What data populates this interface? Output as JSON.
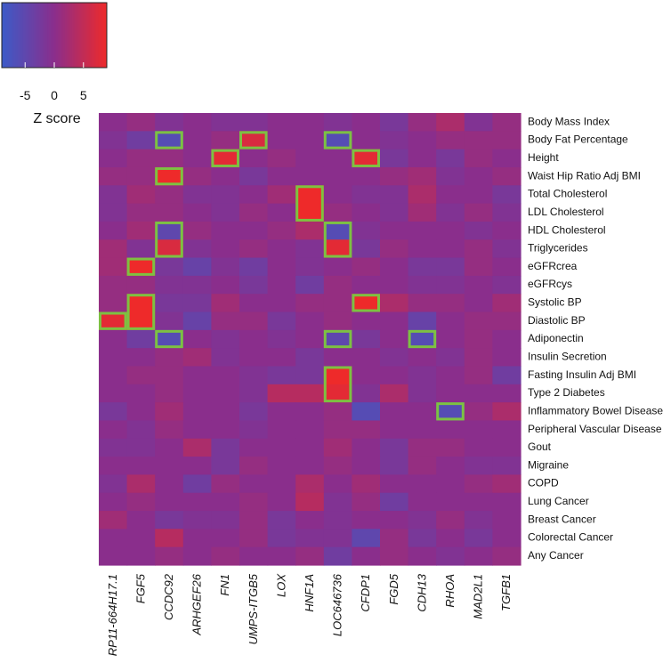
{
  "chart_data": {
    "type": "heatmap",
    "title": "",
    "rows": [
      "Body Mass Index",
      "Body Fat Percentage",
      "Height",
      "Waist Hip Ratio Adj BMI",
      "Total Cholesterol",
      "LDL Cholesterol",
      "HDL Cholesterol",
      "Triglycerides",
      "eGFRcrea",
      "eGFRcys",
      "Systolic BP",
      "Diastolic BP",
      "Adiponectin",
      "Insulin Secretion",
      "Fasting Insulin Adj BMI",
      "Type 2 Diabetes",
      "Inflammatory Bowel Disease",
      "Peripheral Vascular Disease",
      "Gout",
      "Migraine",
      "COPD",
      "Lung Cancer",
      "Breast Cancer",
      "Colorectal Cancer",
      "Any Cancer"
    ],
    "columns": [
      "RP11-664H17.1",
      "FGF5",
      "CCDC92",
      "ARHGEF26",
      "FN1",
      "UMPS-ITGB5",
      "LOX",
      "HNF1A",
      "LOC646736",
      "CFDP1",
      "FGD5",
      "CDH13",
      "RHOA",
      "MAD2L1",
      "TGFB1"
    ],
    "values": [
      [
        0,
        1,
        -1,
        0,
        -1,
        -1,
        0,
        0,
        -1,
        0,
        -2,
        1,
        3,
        -1,
        1
      ],
      [
        -1,
        -3,
        -6,
        0,
        1,
        7,
        0,
        0,
        -6,
        0,
        -1,
        0,
        1,
        1,
        1
      ],
      [
        0,
        1,
        1,
        0,
        8,
        0,
        1,
        0,
        0,
        8,
        -2,
        0,
        -2,
        1,
        0
      ],
      [
        1,
        1,
        9,
        1,
        0,
        -2,
        0,
        0,
        0,
        0,
        1,
        2,
        -1,
        0,
        1
      ],
      [
        -1,
        2,
        1,
        -1,
        -1,
        0,
        2,
        9,
        0,
        -1,
        -1,
        3,
        0,
        0,
        -2
      ],
      [
        -1,
        1,
        1,
        0,
        -1,
        1,
        0,
        9,
        1,
        0,
        -1,
        2,
        -1,
        1,
        -1
      ],
      [
        0,
        2,
        -5,
        1,
        0,
        0,
        1,
        3,
        -6,
        -1,
        0,
        0,
        0,
        -1,
        0
      ],
      [
        2,
        -1,
        7,
        -1,
        0,
        1,
        0,
        -1,
        8,
        -2,
        1,
        0,
        0,
        1,
        -1
      ],
      [
        2,
        9,
        -2,
        -4,
        -1,
        -3,
        0,
        -1,
        0,
        1,
        0,
        -2,
        -2,
        1,
        0
      ],
      [
        1,
        1,
        -1,
        -1,
        0,
        -2,
        0,
        -3,
        1,
        0,
        0,
        -1,
        -1,
        0,
        -1
      ],
      [
        1,
        9,
        -2,
        -2,
        2,
        0,
        0,
        1,
        1,
        9,
        3,
        1,
        1,
        0,
        2
      ],
      [
        8,
        9,
        -1,
        -4,
        1,
        1,
        -2,
        0,
        1,
        0,
        0,
        -4,
        0,
        1,
        1
      ],
      [
        0,
        -3,
        -6,
        0,
        -1,
        0,
        -1,
        0,
        -5,
        -2,
        0,
        -6,
        0,
        1,
        0
      ],
      [
        0,
        0,
        1,
        2,
        -1,
        0,
        0,
        -2,
        0,
        0,
        -1,
        0,
        -1,
        1,
        0
      ],
      [
        0,
        1,
        1,
        0,
        0,
        -1,
        -2,
        -2,
        9,
        0,
        0,
        -1,
        0,
        1,
        -3
      ],
      [
        0,
        0,
        1,
        0,
        0,
        -1,
        4,
        4,
        8,
        -1,
        3,
        -1,
        0,
        0,
        0
      ],
      [
        -2,
        0,
        2,
        0,
        0,
        -2,
        0,
        0,
        1,
        -6,
        0,
        0,
        -6,
        1,
        3
      ],
      [
        0,
        -1,
        1,
        0,
        0,
        -1,
        0,
        0,
        1,
        1,
        0,
        0,
        0,
        0,
        0
      ],
      [
        -1,
        -1,
        0,
        3,
        -2,
        0,
        0,
        0,
        2,
        0,
        -2,
        1,
        1,
        0,
        0
      ],
      [
        0,
        0,
        0,
        0,
        -2,
        1,
        0,
        0,
        1,
        0,
        -2,
        1,
        0,
        -1,
        -1
      ],
      [
        -1,
        3,
        0,
        -3,
        1,
        0,
        0,
        3,
        0,
        2,
        0,
        0,
        0,
        1,
        2
      ],
      [
        0,
        1,
        0,
        0,
        0,
        1,
        0,
        4,
        -1,
        1,
        -3,
        0,
        0,
        0,
        0
      ],
      [
        2,
        0,
        -2,
        -1,
        -1,
        1,
        -2,
        0,
        -1,
        0,
        0,
        -1,
        1,
        -1,
        0
      ],
      [
        0,
        0,
        4,
        0,
        0,
        1,
        -2,
        -1,
        -1,
        -5,
        1,
        -2,
        0,
        -2,
        0
      ],
      [
        0,
        0,
        1,
        0,
        1,
        0,
        0,
        1,
        -3,
        0,
        1,
        0,
        -1,
        0,
        1
      ]
    ],
    "highlighted": [
      {
        "row": 1,
        "col": 2,
        "span": 1
      },
      {
        "row": 1,
        "col": 5,
        "span": 1
      },
      {
        "row": 1,
        "col": 8,
        "span": 1
      },
      {
        "row": 2,
        "col": 4,
        "span": 1
      },
      {
        "row": 2,
        "col": 9,
        "span": 1
      },
      {
        "row": 3,
        "col": 2,
        "span": 1
      },
      {
        "row": 4,
        "col": 7,
        "span": 2
      },
      {
        "row": 6,
        "col": 2,
        "span": 2
      },
      {
        "row": 6,
        "col": 8,
        "span": 2
      },
      {
        "row": 8,
        "col": 1,
        "span": 1
      },
      {
        "row": 10,
        "col": 1,
        "span": 2
      },
      {
        "row": 10,
        "col": 9,
        "span": 1
      },
      {
        "row": 11,
        "col": 0,
        "span": 1
      },
      {
        "row": 12,
        "col": 2,
        "span": 1
      },
      {
        "row": 12,
        "col": 8,
        "span": 1
      },
      {
        "row": 12,
        "col": 11,
        "span": 1
      },
      {
        "row": 14,
        "col": 8,
        "span": 2
      },
      {
        "row": 16,
        "col": 12,
        "span": 1
      }
    ],
    "colorscale": {
      "min": -9,
      "max": 9,
      "low": "#3c5bc8",
      "mid": "#8a2e8c",
      "high": "#ee2a2a"
    },
    "legend": {
      "title": "Z score",
      "ticks": [
        -5,
        0,
        5
      ],
      "placement": "top-left"
    },
    "highlight_color": "#7dc142"
  }
}
